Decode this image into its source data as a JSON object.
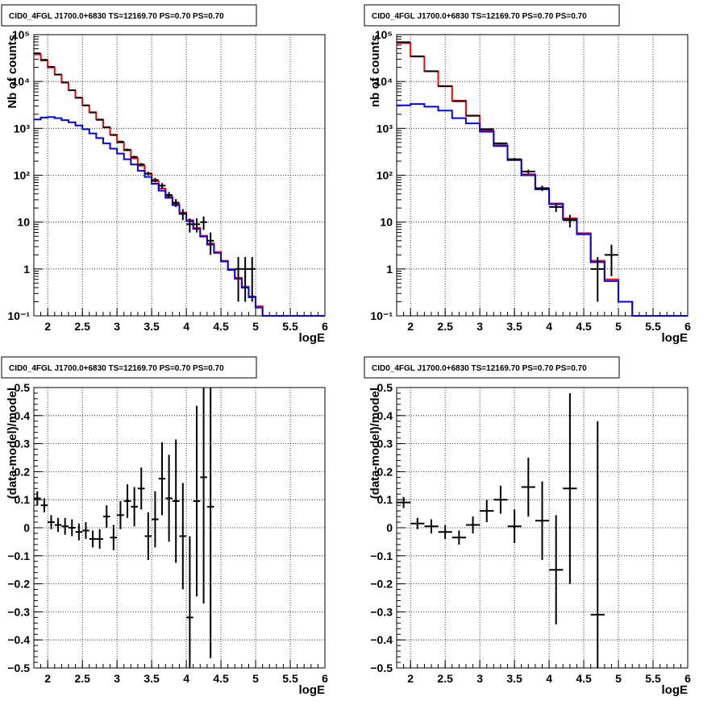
{
  "chart_data": [
    {
      "type": "histogram",
      "title": "CID0_4FGL J1700.0+6830 TS=12169.70 PS=0.70 PS=0.70",
      "xlabel": "logE",
      "ylabel": "Nb of counts",
      "xlim": [
        1.8,
        6.0
      ],
      "ylim": [
        0.1,
        100000
      ],
      "ylog": true,
      "grid": true,
      "x_ticks": [
        "2",
        "2.5",
        "3",
        "3.5",
        "4",
        "4.5",
        "5",
        "5.5",
        "6"
      ],
      "y_ticks": [
        "10⁻¹",
        "1",
        "10",
        "10²",
        "10³",
        "10⁴",
        "10⁵"
      ],
      "bin_width": 0.1,
      "series": [
        {
          "color": "#ff0000",
          "style": "step",
          "x": [
            1.8,
            1.9,
            2.0,
            2.1,
            2.2,
            2.3,
            2.4,
            2.5,
            2.6,
            2.7,
            2.8,
            2.9,
            3.0,
            3.1,
            3.2,
            3.3,
            3.4,
            3.5,
            3.6,
            3.7,
            3.8,
            3.9,
            4.0,
            4.1,
            4.2,
            4.3,
            4.4,
            4.5,
            4.6,
            4.7,
            4.8,
            4.9,
            5.0,
            5.1,
            5.2,
            5.3,
            5.4,
            5.5,
            5.6,
            5.7,
            5.8,
            5.9
          ],
          "values": [
            38000,
            28000,
            20000,
            14000,
            9500,
            6500,
            4500,
            3100,
            2200,
            1550,
            1050,
            730,
            500,
            340,
            230,
            160,
            110,
            75,
            52,
            35,
            24,
            16,
            11,
            7.5,
            5.1,
            3.5,
            2.3,
            1.5,
            1.0,
            0.65,
            0.42,
            0.26,
            0.16,
            0.1,
            0.1,
            0.1,
            0.1,
            0.1,
            0.1,
            0.1,
            0.1,
            0.1
          ]
        },
        {
          "color": "#0000ff",
          "style": "step",
          "x": [
            1.8,
            1.9,
            2.0,
            2.1,
            2.2,
            2.3,
            2.4,
            2.5,
            2.6,
            2.7,
            2.8,
            2.9,
            3.0,
            3.1,
            3.2,
            3.3,
            3.4,
            3.5,
            3.6,
            3.7,
            3.8,
            3.9,
            4.0,
            4.1,
            4.2,
            4.3,
            4.4,
            4.5,
            4.6,
            4.7,
            4.8,
            4.9,
            5.0,
            5.1,
            5.2,
            5.3,
            5.4,
            5.5,
            5.6,
            5.7,
            5.8,
            5.9
          ],
          "values": [
            1550,
            1700,
            1750,
            1650,
            1500,
            1350,
            1150,
            960,
            780,
            620,
            480,
            370,
            290,
            220,
            170,
            125,
            92,
            66,
            47,
            33,
            23,
            15,
            10.5,
            7.2,
            4.9,
            3.3,
            2.2,
            1.45,
            0.95,
            0.62,
            0.4,
            0.25,
            0.15,
            0.1,
            0.1,
            0.1,
            0.1,
            0.1,
            0.1,
            0.1,
            0.1,
            0.1
          ]
        }
      ],
      "points": {
        "color": "#000000",
        "x": [
          1.85,
          1.95,
          2.05,
          2.15,
          2.25,
          2.35,
          2.45,
          2.55,
          2.65,
          2.75,
          2.85,
          2.95,
          3.05,
          3.15,
          3.25,
          3.35,
          3.45,
          3.55,
          3.65,
          3.75,
          3.85,
          3.95,
          4.05,
          4.15,
          4.25,
          4.35,
          4.75,
          4.85,
          4.95
        ],
        "y": [
          40000,
          29000,
          20500,
          14100,
          9560,
          6520,
          4510,
          3090,
          2180,
          1520,
          1060,
          720,
          520,
          350,
          245,
          170,
          108,
          79,
          60,
          38,
          26,
          15,
          9,
          9,
          10,
          4,
          1,
          1,
          1
        ],
        "yerr": [
          200,
          170,
          143,
          119,
          98,
          81,
          67,
          56,
          47,
          39,
          33,
          27,
          23,
          19,
          16,
          13,
          10,
          9,
          8,
          6,
          5,
          4,
          3,
          3,
          3.2,
          2,
          0.8,
          0.8,
          0.8
        ]
      }
    },
    {
      "type": "histogram",
      "title": "CID0_4FGL J1700.0+6830 TS=12169.70 PS=0.70 PS=0.70",
      "xlabel": "logE",
      "ylabel": "nb of counts",
      "xlim": [
        1.8,
        6.0
      ],
      "ylim": [
        0.1,
        100000
      ],
      "ylog": true,
      "grid": true,
      "x_ticks": [
        "2",
        "2.5",
        "3",
        "3.5",
        "4",
        "4.5",
        "5",
        "5.5",
        "6"
      ],
      "y_ticks": [
        "10⁻¹",
        "1",
        "10",
        "10²",
        "10³",
        "10⁴",
        "10⁵"
      ],
      "bin_width": 0.2,
      "series": [
        {
          "color": "#ff0000",
          "style": "step",
          "x": [
            1.8,
            2.0,
            2.2,
            2.4,
            2.6,
            2.8,
            3.0,
            3.2,
            3.4,
            3.6,
            3.8,
            4.0,
            4.2,
            4.4,
            4.6,
            4.8,
            5.0,
            5.2,
            5.4,
            5.6,
            5.8
          ],
          "values": [
            66000,
            34000,
            16500,
            8000,
            3900,
            1850,
            900,
            440,
            215,
            105,
            52,
            25,
            12,
            5.8,
            1.5,
            0.6,
            0.2,
            0.1,
            0.1,
            0.1,
            0.1
          ]
        },
        {
          "color": "#0000ff",
          "style": "step",
          "x": [
            1.8,
            2.0,
            2.2,
            2.4,
            2.6,
            2.8,
            3.0,
            3.2,
            3.4,
            3.6,
            3.8,
            4.0,
            4.2,
            4.4,
            4.6,
            4.8,
            5.0,
            5.2,
            5.4,
            5.6,
            5.8
          ],
          "values": [
            3100,
            3300,
            2900,
            2400,
            1650,
            1280,
            850,
            420,
            210,
            100,
            50,
            24,
            11.5,
            5.5,
            1.4,
            0.55,
            0.2,
            0.1,
            0.1,
            0.1,
            0.1
          ]
        }
      ],
      "points": {
        "color": "#000000",
        "x": [
          1.9,
          2.1,
          2.3,
          2.5,
          2.7,
          2.9,
          3.1,
          3.3,
          3.5,
          3.7,
          3.9,
          4.1,
          4.3,
          4.7,
          4.9
        ],
        "y": [
          69000,
          34500,
          16600,
          7900,
          3800,
          1870,
          960,
          480,
          220,
          120,
          53,
          21,
          11,
          1,
          2
        ],
        "yerr": [
          260,
          186,
          129,
          89,
          62,
          43,
          31,
          22,
          15,
          11,
          7,
          4.5,
          3.3,
          0.8,
          1.3
        ]
      }
    },
    {
      "type": "scatter",
      "title": "CID0_4FGL J1700.0+6830 TS=12169.70 PS=0.70 PS=0.70",
      "xlabel": "logE",
      "ylabel": "(data-model)/model",
      "xlim": [
        1.8,
        6.0
      ],
      "ylim": [
        -0.5,
        0.5
      ],
      "grid": true,
      "x_ticks": [
        "2",
        "2.5",
        "3",
        "3.5",
        "4",
        "4.5",
        "5",
        "5.5",
        "6"
      ],
      "y_ticks": [
        "−0.5",
        "−0.4",
        "−0.3",
        "−0.2",
        "−0.1",
        "0",
        "0.1",
        "0.2",
        "0.3",
        "0.4",
        "0.5"
      ],
      "bin_width": 0.1,
      "points": {
        "color": "#000000",
        "x": [
          1.85,
          1.95,
          2.05,
          2.15,
          2.25,
          2.35,
          2.45,
          2.55,
          2.65,
          2.75,
          2.85,
          2.95,
          3.05,
          3.15,
          3.25,
          3.35,
          3.45,
          3.55,
          3.65,
          3.75,
          3.85,
          3.95,
          4.05,
          4.15,
          4.25,
          4.35
        ],
        "y": [
          0.105,
          0.08,
          0.02,
          0.01,
          0.005,
          0.0,
          -0.015,
          -0.01,
          -0.04,
          -0.04,
          0.04,
          -0.035,
          0.045,
          0.095,
          0.075,
          0.14,
          -0.03,
          0.03,
          0.175,
          0.105,
          0.095,
          -0.03,
          -0.32,
          0.095,
          0.18,
          0.075
        ],
        "yerr": [
          0.025,
          0.025,
          0.025,
          0.025,
          0.03,
          0.03,
          0.03,
          0.03,
          0.03,
          0.035,
          0.04,
          0.045,
          0.05,
          0.06,
          0.07,
          0.075,
          0.085,
          0.1,
          0.13,
          0.155,
          0.22,
          0.19,
          0.29,
          0.34,
          0.45,
          0.54
        ]
      }
    },
    {
      "type": "scatter",
      "title": "CID0_4FGL J1700.0+6830 TS=12169.70 PS=0.70 PS=0.70",
      "xlabel": "logE",
      "ylabel": "(data-model)/model",
      "xlim": [
        1.8,
        6.0
      ],
      "ylim": [
        -0.5,
        0.5
      ],
      "grid": true,
      "x_ticks": [
        "2",
        "2.5",
        "3",
        "3.5",
        "4",
        "4.5",
        "5",
        "5.5",
        "6"
      ],
      "y_ticks": [
        "−0.5",
        "−0.4",
        "−0.3",
        "−0.2",
        "−0.1",
        "0",
        "0.1",
        "0.2",
        "0.3",
        "0.4",
        "0.5"
      ],
      "bin_width": 0.2,
      "points": {
        "color": "#000000",
        "x": [
          1.9,
          2.1,
          2.3,
          2.5,
          2.7,
          2.9,
          3.1,
          3.3,
          3.5,
          3.7,
          3.9,
          4.1,
          4.3,
          4.7
        ],
        "y": [
          0.09,
          0.015,
          0.005,
          -0.015,
          -0.035,
          0.01,
          0.06,
          0.1,
          0.005,
          0.145,
          0.025,
          -0.15,
          0.14,
          -0.31
        ],
        "yerr": [
          0.02,
          0.02,
          0.025,
          0.025,
          0.025,
          0.03,
          0.04,
          0.05,
          0.06,
          0.105,
          0.14,
          0.195,
          0.34,
          0.69
        ]
      }
    }
  ]
}
